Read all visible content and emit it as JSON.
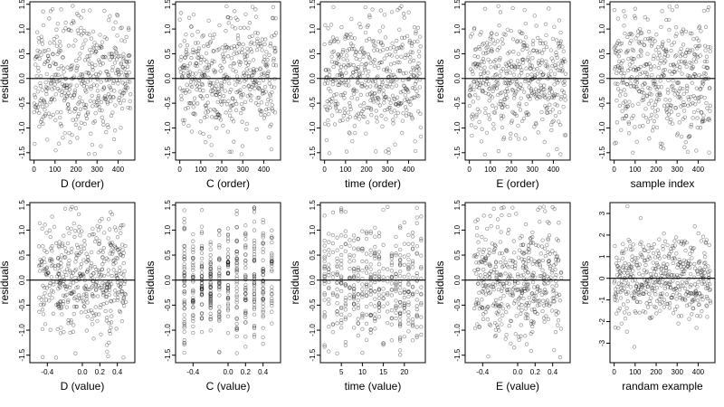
{
  "chart_data": [
    {
      "type": "scatter",
      "xlabel": "D (order)",
      "ylabel": "residuals",
      "x_kind": "order",
      "xlim": [
        -20,
        480
      ],
      "ylim": [
        -1.65,
        1.55
      ],
      "xticks": [
        0,
        100,
        200,
        300,
        400
      ],
      "xtick_labels": [
        "0",
        "100",
        "200",
        "300",
        "400"
      ],
      "yticks": [
        -1.5,
        -1.0,
        -0.5,
        0.0,
        0.5,
        1.0,
        1.5
      ],
      "ytick_labels": [
        "-1.5",
        "-1.0",
        "-0.5",
        "0.0",
        "0.5",
        "1.0",
        "1.5"
      ],
      "n_points": 460,
      "y_sd": 0.6,
      "ref_line_y": 0,
      "seed": 11
    },
    {
      "type": "scatter",
      "xlabel": "C (order)",
      "ylabel": "residuals",
      "x_kind": "order",
      "xlim": [
        -20,
        480
      ],
      "ylim": [
        -1.65,
        1.55
      ],
      "xticks": [
        0,
        100,
        200,
        300,
        400
      ],
      "xtick_labels": [
        "0",
        "100",
        "200",
        "300",
        "400"
      ],
      "yticks": [
        -1.5,
        -1.0,
        -0.5,
        0.0,
        0.5,
        1.0,
        1.5
      ],
      "ytick_labels": [
        "-1.5",
        "-1.0",
        "-0.5",
        "0.0",
        "0.5",
        "1.0",
        "1.5"
      ],
      "n_points": 460,
      "y_sd": 0.6,
      "ref_line_y": 0,
      "seed": 23
    },
    {
      "type": "scatter",
      "xlabel": "time (order)",
      "ylabel": "residuals",
      "x_kind": "order",
      "xlim": [
        -20,
        480
      ],
      "ylim": [
        -1.65,
        1.55
      ],
      "xticks": [
        0,
        100,
        200,
        300,
        400
      ],
      "xtick_labels": [
        "0",
        "100",
        "200",
        "300",
        "400"
      ],
      "yticks": [
        -1.5,
        -1.0,
        -0.5,
        0.0,
        0.5,
        1.0,
        1.5
      ],
      "ytick_labels": [
        "-1.5",
        "-1.0",
        "-0.5",
        "0.0",
        "0.5",
        "1.0",
        "1.5"
      ],
      "n_points": 460,
      "y_sd": 0.6,
      "ref_line_y": 0,
      "seed": 37
    },
    {
      "type": "scatter",
      "xlabel": "E (order)",
      "ylabel": "residuals",
      "x_kind": "order",
      "xlim": [
        -20,
        480
      ],
      "ylim": [
        -1.65,
        1.55
      ],
      "xticks": [
        0,
        100,
        200,
        300,
        400
      ],
      "xtick_labels": [
        "0",
        "100",
        "200",
        "300",
        "400"
      ],
      "yticks": [
        -1.5,
        -1.0,
        -0.5,
        0.0,
        0.5,
        1.0,
        1.5
      ],
      "ytick_labels": [
        "-1.5",
        "-1.0",
        "-0.5",
        "0.0",
        "0.5",
        "1.0",
        "1.5"
      ],
      "n_points": 460,
      "y_sd": 0.6,
      "ref_line_y": 0,
      "seed": 41
    },
    {
      "type": "scatter",
      "xlabel": "sample index",
      "ylabel": "residuals",
      "x_kind": "order",
      "xlim": [
        -20,
        480
      ],
      "ylim": [
        -1.65,
        1.55
      ],
      "xticks": [
        0,
        100,
        200,
        300,
        400
      ],
      "xtick_labels": [
        "0",
        "100",
        "200",
        "300",
        "400"
      ],
      "yticks": [
        -1.5,
        -1.0,
        -0.5,
        0.0,
        0.5,
        1.0,
        1.5
      ],
      "ytick_labels": [
        "-1.5",
        "-1.0",
        "-0.5",
        "0.0",
        "0.5",
        "1.0",
        "1.5"
      ],
      "n_points": 460,
      "y_sd": 0.6,
      "ref_line_y": 0,
      "seed": 53
    },
    {
      "type": "scatter",
      "xlabel": "D (value)",
      "ylabel": "residuals",
      "x_kind": "continuous",
      "xlim": [
        -0.6,
        0.6
      ],
      "ylim": [
        -1.65,
        1.55
      ],
      "xticks": [
        -0.4,
        0.0,
        0.2,
        0.4
      ],
      "xtick_labels": [
        "-0.4",
        "0.0",
        "0.2",
        "0.4"
      ],
      "yticks": [
        -1.5,
        -1.0,
        -0.5,
        0.0,
        0.5,
        1.0,
        1.5
      ],
      "ytick_labels": [
        "-1.5",
        "-1.0",
        "-0.5",
        "0.0",
        "0.5",
        "1.0",
        "1.5"
      ],
      "n_points": 460,
      "y_sd": 0.6,
      "ref_line_y": 0,
      "seed": 61
    },
    {
      "type": "scatter",
      "xlabel": "C (value)",
      "ylabel": "residuals",
      "x_kind": "discrete",
      "x_levels": [
        -0.5,
        -0.4,
        -0.3,
        -0.2,
        -0.1,
        0.0,
        0.1,
        0.2,
        0.3,
        0.4,
        0.5
      ],
      "xlim": [
        -0.6,
        0.6
      ],
      "ylim": [
        -1.65,
        1.55
      ],
      "xticks": [
        -0.4,
        0.0,
        0.2,
        0.4
      ],
      "xtick_labels": [
        "-0.4",
        "0.0",
        "0.2",
        "0.4"
      ],
      "yticks": [
        -1.5,
        -1.0,
        -0.5,
        0.0,
        0.5,
        1.0,
        1.5
      ],
      "ytick_labels": [
        "-1.5",
        "-1.0",
        "-0.5",
        "0.0",
        "0.5",
        "1.0",
        "1.5"
      ],
      "n_points": 460,
      "y_sd": 0.6,
      "ref_line_y": 0,
      "seed": 71
    },
    {
      "type": "scatter",
      "xlabel": "time (value)",
      "ylabel": "residuals",
      "x_kind": "discrete",
      "x_levels": [
        1,
        2,
        3,
        4,
        5,
        6,
        7,
        8,
        9,
        10,
        11,
        12,
        13,
        14,
        15,
        16,
        17,
        18,
        19,
        20,
        21,
        22,
        23,
        24
      ],
      "xlim": [
        0,
        25
      ],
      "ylim": [
        -1.65,
        1.55
      ],
      "xticks": [
        5,
        10,
        15,
        20
      ],
      "xtick_labels": [
        "5",
        "10",
        "15",
        "20"
      ],
      "yticks": [
        -1.5,
        -1.0,
        -0.5,
        0.0,
        0.5,
        1.0,
        1.5
      ],
      "ytick_labels": [
        "-1.5",
        "-1.0",
        "-0.5",
        "0.0",
        "0.5",
        "1.0",
        "1.5"
      ],
      "n_points": 460,
      "y_sd": 0.6,
      "ref_line_y": 0,
      "seed": 83
    },
    {
      "type": "scatter",
      "xlabel": "E (value)",
      "ylabel": "residuals",
      "x_kind": "continuous",
      "xlim": [
        -0.6,
        0.6
      ],
      "ylim": [
        -1.65,
        1.55
      ],
      "xticks": [
        -0.4,
        0.0,
        0.2,
        0.4
      ],
      "xtick_labels": [
        "-0.4",
        "0.0",
        "0.2",
        "0.4"
      ],
      "yticks": [
        -1.5,
        -1.0,
        -0.5,
        0.0,
        0.5,
        1.0,
        1.5
      ],
      "ytick_labels": [
        "-1.5",
        "-1.0",
        "-0.5",
        "0.0",
        "0.5",
        "1.0",
        "1.5"
      ],
      "n_points": 460,
      "y_sd": 0.6,
      "ref_line_y": 0,
      "seed": 97
    },
    {
      "type": "scatter",
      "xlabel": "randam example",
      "ylabel": "residuals",
      "x_kind": "order",
      "xlim": [
        -20,
        480
      ],
      "ylim": [
        -3.9,
        3.5
      ],
      "xticks": [
        0,
        100,
        200,
        300,
        400
      ],
      "xtick_labels": [
        "0",
        "100",
        "200",
        "300",
        "400"
      ],
      "yticks": [
        -3,
        -2,
        -1,
        0,
        1,
        2,
        3
      ],
      "ytick_labels": [
        "-3",
        "-2",
        "-1",
        "0",
        "1",
        "2",
        "3"
      ],
      "n_points": 460,
      "y_sd": 1.0,
      "ref_line_y": 0,
      "seed": 107
    }
  ]
}
